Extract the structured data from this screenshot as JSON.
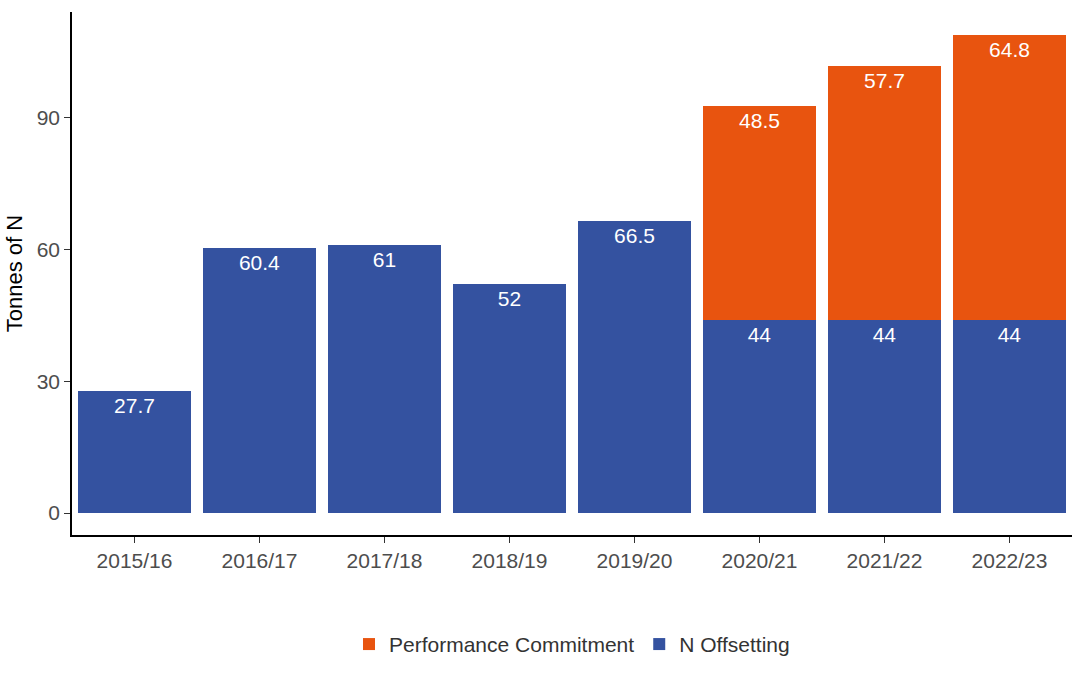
{
  "chart_data": {
    "type": "bar",
    "stacked": true,
    "y_label": "Tonnes of N",
    "categories": [
      "2015/16",
      "2016/17",
      "2017/18",
      "2018/19",
      "2019/20",
      "2020/21",
      "2021/22",
      "2022/23"
    ],
    "series": [
      {
        "name": "N Offsetting",
        "color": "#3452a0",
        "values": [
          27.7,
          60.4,
          61,
          52,
          66.5,
          44,
          44,
          44
        ]
      },
      {
        "name": "Performance Commitment",
        "color": "#e8540f",
        "values": [
          null,
          null,
          null,
          null,
          null,
          48.5,
          57.7,
          64.8
        ]
      }
    ],
    "ylim": [
      -5,
      114
    ],
    "yticks": [
      0,
      30,
      60,
      90
    ],
    "grid": false,
    "data_labels": true,
    "legend": "bottom"
  }
}
